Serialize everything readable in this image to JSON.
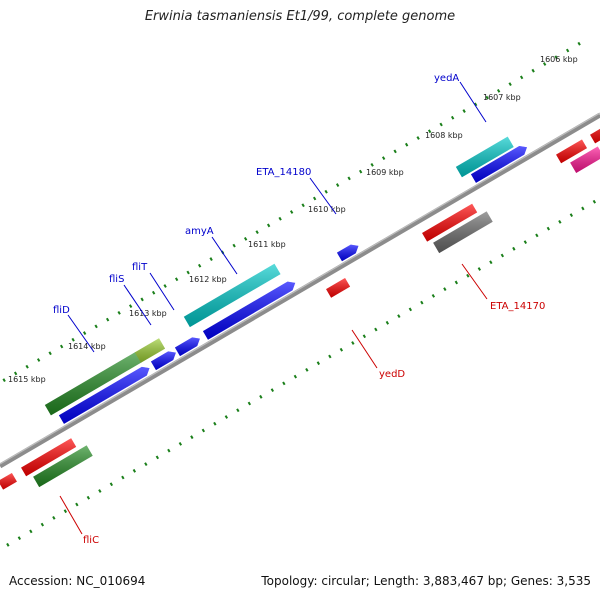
{
  "title": "Erwinia tasmaniensis Et1/99, complete genome",
  "footer": {
    "accession": "Accession: NC_010694",
    "stats": "Topology: circular; Length: 3,883,467 bp; Genes: 3,535"
  },
  "colors": {
    "backbone": "#8c8c8c",
    "tick": "#1a7f1a",
    "forward_label": "#0000cc",
    "reverse_label": "#cc0000",
    "blue": "#0000ff",
    "red": "#ff0000",
    "green": "#228b22",
    "cyan": "#00c8c8",
    "gray": "#6a6a6a",
    "pink": "#ff1493"
  },
  "kbp_ticks": [
    {
      "label": "1606 kbp"
    },
    {
      "label": "1607 kbp"
    },
    {
      "label": "1608 kbp"
    },
    {
      "label": "1609 kbp"
    },
    {
      "label": "1610 kbp"
    },
    {
      "label": "1611 kbp"
    },
    {
      "label": "1612 kbp"
    },
    {
      "label": "1613 kbp"
    },
    {
      "label": "1614 kbp"
    },
    {
      "label": "1615 kbp"
    }
  ],
  "gene_labels": {
    "forward": [
      "yedA",
      "ETA_14180",
      "amyA",
      "fliT",
      "fliS",
      "fliD"
    ],
    "reverse": [
      "ETA_14170",
      "yedD",
      "fliC"
    ]
  }
}
